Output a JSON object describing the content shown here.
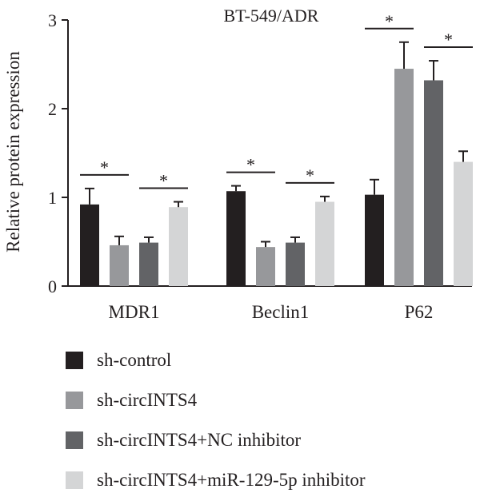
{
  "chart_data": {
    "type": "bar",
    "title": "BT-549/ADR",
    "ylabel": "Relative protein expression",
    "xlabel": "",
    "ylim": [
      0,
      3
    ],
    "yticks": [
      "0",
      "1",
      "2",
      "3"
    ],
    "categories": [
      "MDR1",
      "Beclin1",
      "P62"
    ],
    "series": [
      {
        "name": "sh-control",
        "color": "#231f20",
        "values": [
          0.92,
          1.07,
          1.03
        ],
        "errors": [
          0.18,
          0.06,
          0.17
        ]
      },
      {
        "name": "sh-circINTS4",
        "color": "#97989b",
        "values": [
          0.46,
          0.44,
          2.45
        ],
        "errors": [
          0.1,
          0.06,
          0.3
        ]
      },
      {
        "name": "sh-circINTS4+NC inhibitor",
        "color": "#626366",
        "values": [
          0.49,
          0.49,
          2.32
        ],
        "errors": [
          0.06,
          0.06,
          0.22
        ]
      },
      {
        "name": "sh-circINTS4+miR-129-5p inhibitor",
        "color": "#d4d5d6",
        "values": [
          0.89,
          0.95,
          1.4
        ],
        "errors": [
          0.06,
          0.06,
          0.12
        ]
      }
    ],
    "significance": [
      {
        "category": "MDR1",
        "pair": [
          0,
          1
        ],
        "label": "*"
      },
      {
        "category": "MDR1",
        "pair": [
          2,
          3
        ],
        "label": "*"
      },
      {
        "category": "Beclin1",
        "pair": [
          0,
          1
        ],
        "label": "*"
      },
      {
        "category": "Beclin1",
        "pair": [
          2,
          3
        ],
        "label": "*"
      },
      {
        "category": "P62",
        "pair": [
          0,
          1
        ],
        "label": "*"
      },
      {
        "category": "P62",
        "pair": [
          2,
          3
        ],
        "label": "*"
      }
    ],
    "legend_position": "bottom"
  }
}
